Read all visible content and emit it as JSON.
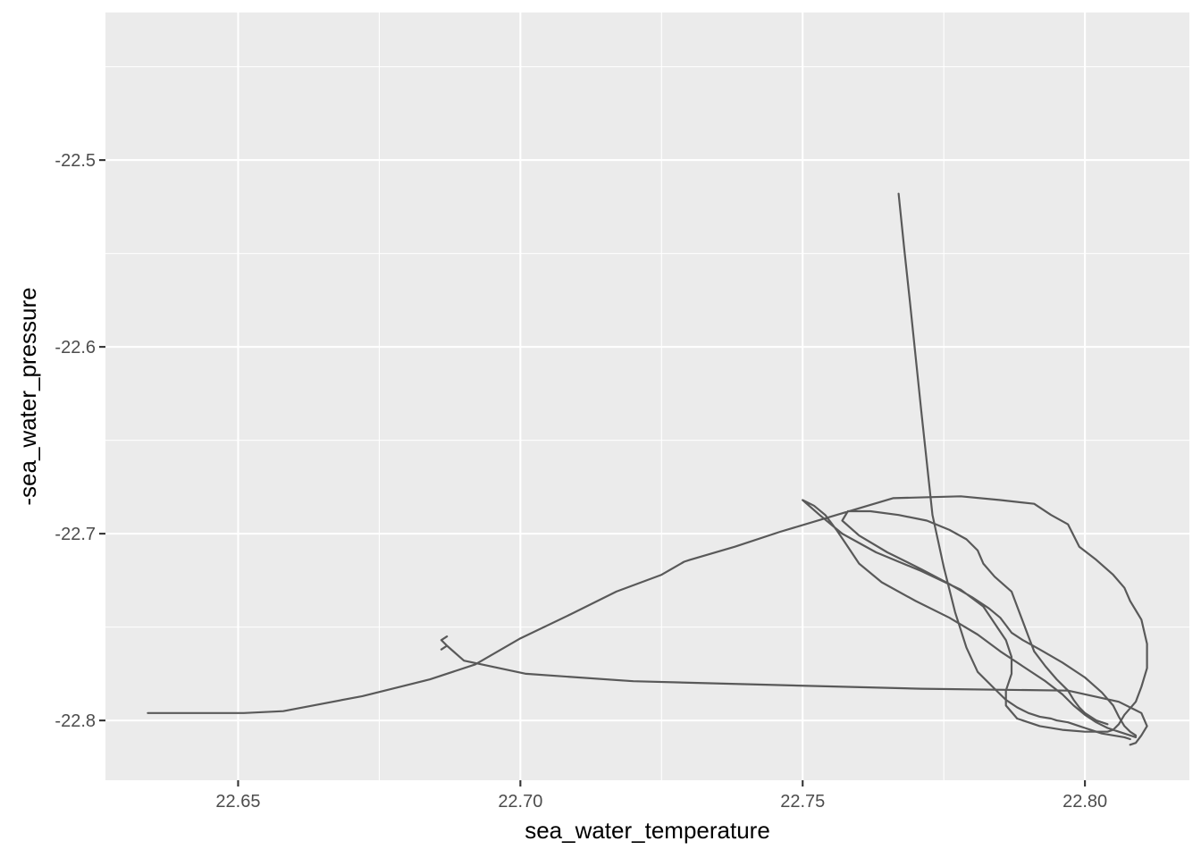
{
  "chart_data": {
    "type": "line",
    "title": "",
    "xlabel": "sea_water_temperature",
    "ylabel": "-sea_water_pressure",
    "xlim": [
      22.6265,
      22.8185
    ],
    "ylim": [
      -22.832,
      -22.421
    ],
    "x_ticks": [
      22.65,
      22.7,
      22.75,
      22.8
    ],
    "x_tick_labels": [
      "22.65",
      "22.70",
      "22.75",
      "22.80"
    ],
    "y_ticks": [
      -22.5,
      -22.6,
      -22.7,
      -22.8
    ],
    "y_tick_labels": [
      "-22.5",
      "-22.6",
      "-22.7",
      "-22.8"
    ],
    "grid": true,
    "panel_background": "#ebebeb",
    "grid_color": "#ffffff",
    "line_color": "#595959",
    "series": [
      {
        "x": [
          22.634,
          22.639,
          22.645,
          22.651,
          22.658,
          22.672,
          22.684,
          22.692,
          22.7,
          22.709,
          22.717,
          22.725,
          22.729,
          22.73,
          22.738,
          22.746,
          22.756,
          22.766,
          22.778,
          22.785,
          22.791,
          22.794,
          22.797,
          22.798,
          22.799,
          22.802,
          22.805,
          22.807,
          22.808,
          22.81,
          22.811,
          22.811,
          22.81,
          22.809,
          22.807,
          22.806,
          22.805,
          22.804,
          22.8,
          22.796,
          22.792,
          22.788,
          22.786,
          22.786,
          22.787,
          22.787,
          22.786,
          22.784,
          22.782,
          22.778,
          22.771,
          22.763,
          22.757,
          22.753,
          22.75,
          22.752,
          22.754,
          22.756,
          22.758,
          22.76,
          22.764,
          22.77,
          22.776,
          22.781,
          22.785,
          22.789,
          22.793,
          22.796,
          22.798,
          22.8,
          22.802,
          22.804,
          22.806,
          22.808,
          22.809,
          22.809,
          22.808,
          22.807,
          22.806,
          22.805,
          22.803,
          22.8,
          22.796,
          22.792,
          22.789,
          22.787,
          22.786,
          22.785,
          22.783,
          22.78,
          22.776,
          22.771,
          22.765,
          22.76,
          22.757,
          22.758,
          22.762,
          22.767,
          22.772,
          22.776,
          22.779,
          22.781,
          22.782,
          22.784,
          22.787,
          22.788,
          22.789,
          22.79,
          22.791,
          22.793,
          22.795,
          22.797,
          22.798,
          22.799,
          22.8,
          22.801,
          22.802,
          22.803,
          22.804,
          22.804
        ],
        "y": [
          -22.796,
          -22.796,
          -22.796,
          -22.796,
          -22.795,
          -22.787,
          -22.778,
          -22.77,
          -22.756,
          -22.743,
          -22.731,
          -22.722,
          -22.715,
          -22.714,
          -22.707,
          -22.699,
          -22.69,
          -22.681,
          -22.68,
          -22.682,
          -22.684,
          -22.69,
          -22.695,
          -22.701,
          -22.707,
          -22.714,
          -22.722,
          -22.729,
          -22.736,
          -22.746,
          -22.759,
          -22.772,
          -22.782,
          -22.79,
          -22.797,
          -22.802,
          -22.805,
          -22.806,
          -22.806,
          -22.805,
          -22.803,
          -22.799,
          -22.792,
          -22.784,
          -22.775,
          -22.766,
          -22.757,
          -22.748,
          -22.739,
          -22.73,
          -22.72,
          -22.71,
          -22.7,
          -22.69,
          -22.682,
          -22.685,
          -22.69,
          -22.698,
          -22.707,
          -22.716,
          -22.726,
          -22.736,
          -22.745,
          -22.754,
          -22.763,
          -22.771,
          -22.779,
          -22.786,
          -22.792,
          -22.797,
          -22.801,
          -22.804,
          -22.806,
          -22.808,
          -22.809,
          -22.808,
          -22.806,
          -22.803,
          -22.798,
          -22.792,
          -22.785,
          -22.777,
          -22.769,
          -22.762,
          -22.757,
          -22.753,
          -22.749,
          -22.745,
          -22.74,
          -22.734,
          -22.727,
          -22.719,
          -22.71,
          -22.701,
          -22.693,
          -22.688,
          -22.688,
          -22.69,
          -22.693,
          -22.698,
          -22.703,
          -22.709,
          -22.716,
          -22.723,
          -22.731,
          -22.739,
          -22.747,
          -22.755,
          -22.763,
          -22.771,
          -22.778,
          -22.784,
          -22.789,
          -22.793,
          -22.796,
          -22.798,
          -22.8,
          -22.801,
          -22.802,
          -22.802
        ]
      },
      {
        "x": [
          22.767,
          22.768,
          22.769,
          22.77,
          22.771,
          22.772,
          22.773,
          22.775,
          22.777,
          22.779,
          22.781,
          22.784,
          22.786,
          22.788,
          22.79,
          22.792,
          22.794,
          22.795,
          22.797,
          22.798,
          22.799,
          22.8,
          22.801,
          22.802,
          22.803,
          22.805,
          22.807,
          22.808
        ],
        "y": [
          -22.518,
          -22.548,
          -22.576,
          -22.605,
          -22.634,
          -22.662,
          -22.69,
          -22.718,
          -22.742,
          -22.761,
          -22.774,
          -22.783,
          -22.789,
          -22.793,
          -22.796,
          -22.798,
          -22.799,
          -22.8,
          -22.801,
          -22.802,
          -22.803,
          -22.804,
          -22.805,
          -22.806,
          -22.807,
          -22.808,
          -22.809,
          -22.81
        ]
      },
      {
        "x": [
          22.686,
          22.687,
          22.686,
          22.687,
          22.686,
          22.687,
          22.69,
          22.701,
          22.72,
          22.745,
          22.771,
          22.797,
          22.806,
          22.81,
          22.811,
          22.81,
          22.809,
          22.808
        ],
        "y": [
          -22.762,
          -22.76,
          -22.757,
          -22.755,
          -22.757,
          -22.76,
          -22.768,
          -22.775,
          -22.779,
          -22.781,
          -22.783,
          -22.784,
          -22.79,
          -22.796,
          -22.803,
          -22.808,
          -22.812,
          -22.813
        ]
      }
    ]
  }
}
